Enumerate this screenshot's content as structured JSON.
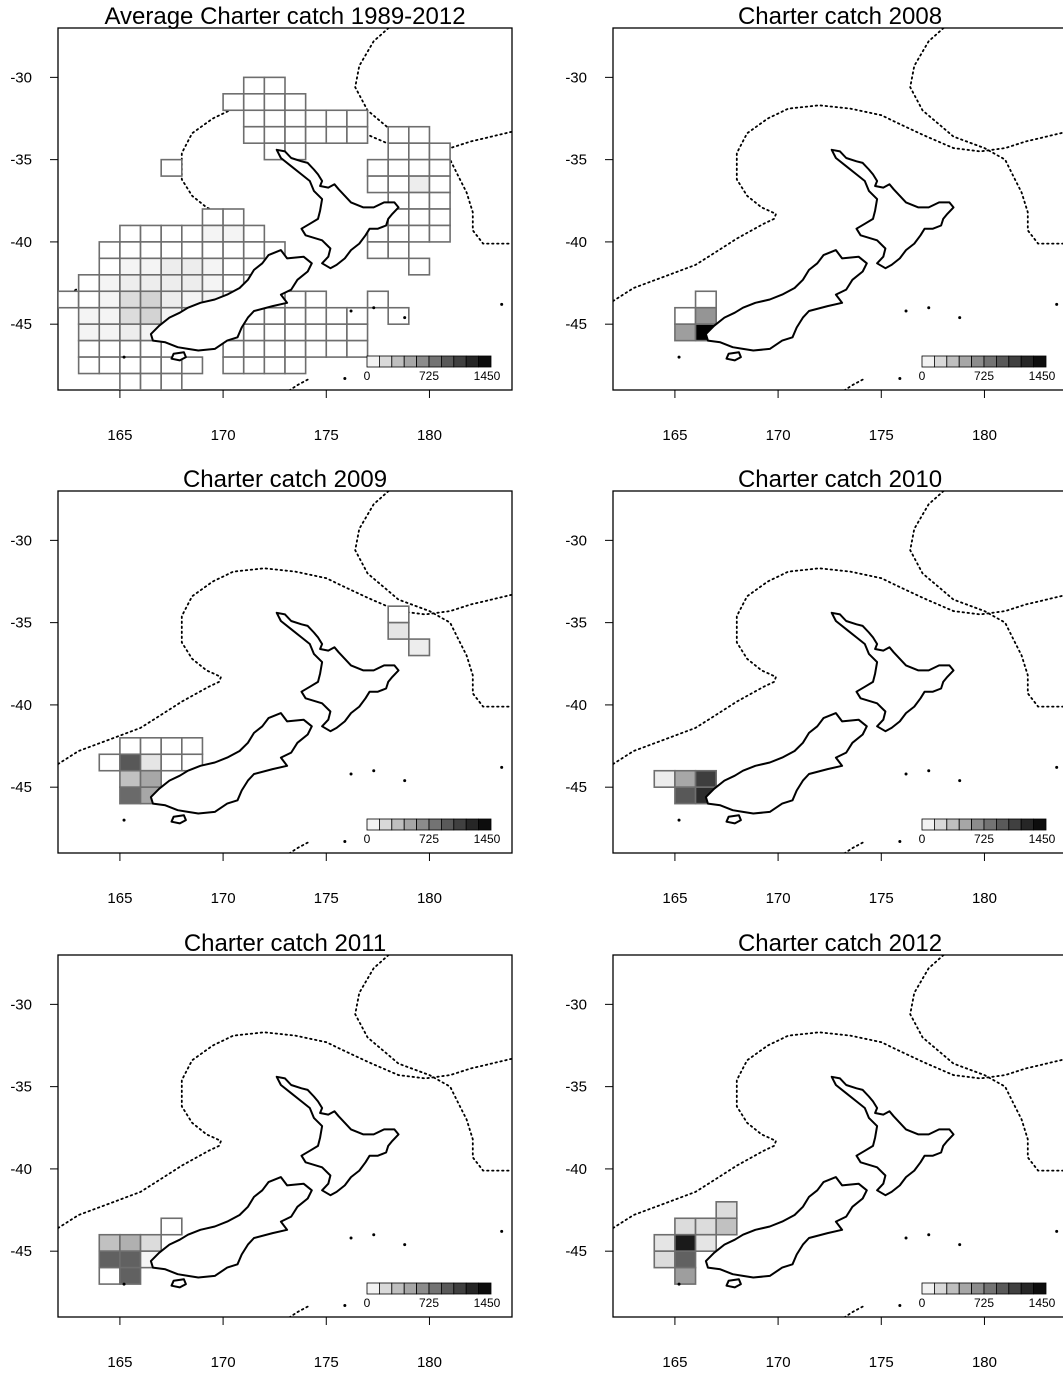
{
  "figure": {
    "x_ticks": [
      "165",
      "170",
      "175",
      "180"
    ],
    "y_ticks": [
      "-30",
      "-35",
      "-40",
      "-45"
    ],
    "legend": {
      "labels": [
        "0",
        "725",
        "1450"
      ],
      "min": 0,
      "max": 1450,
      "steps": 10
    }
  },
  "chart_data": [
    {
      "type": "heatmap",
      "title": "Average Charter catch 1989-2012",
      "xlim": [
        162,
        184
      ],
      "ylim": [
        -49,
        -27
      ],
      "cells": [
        [
          171,
          -30,
          0
        ],
        [
          172,
          -30,
          0
        ],
        [
          170,
          -31,
          0
        ],
        [
          171,
          -31,
          0
        ],
        [
          172,
          -31,
          0
        ],
        [
          173,
          -31,
          0
        ],
        [
          171,
          -32,
          0
        ],
        [
          172,
          -32,
          0
        ],
        [
          173,
          -32,
          0
        ],
        [
          174,
          -32,
          0
        ],
        [
          175,
          -32,
          0
        ],
        [
          176,
          -32,
          0
        ],
        [
          171,
          -33,
          0
        ],
        [
          172,
          -33,
          0
        ],
        [
          173,
          -33,
          0
        ],
        [
          174,
          -33,
          0
        ],
        [
          175,
          -33,
          0
        ],
        [
          176,
          -33,
          0
        ],
        [
          178,
          -33,
          0
        ],
        [
          179,
          -33,
          0
        ],
        [
          172,
          -34,
          0
        ],
        [
          173,
          -34,
          0
        ],
        [
          178,
          -34,
          0
        ],
        [
          179,
          -34,
          0
        ],
        [
          180,
          -34,
          0
        ],
        [
          167,
          -35,
          0
        ],
        [
          177,
          -35,
          0
        ],
        [
          178,
          -35,
          0
        ],
        [
          179,
          -35,
          0
        ],
        [
          180,
          -35,
          0
        ],
        [
          177,
          -36,
          0
        ],
        [
          178,
          -36,
          0
        ],
        [
          179,
          -36,
          100
        ],
        [
          180,
          -36,
          0
        ],
        [
          178,
          -37,
          0
        ],
        [
          179,
          -37,
          0
        ],
        [
          180,
          -37,
          0
        ],
        [
          169,
          -38,
          0
        ],
        [
          170,
          -38,
          0
        ],
        [
          178,
          -38,
          0
        ],
        [
          179,
          -38,
          0
        ],
        [
          180,
          -38,
          0
        ],
        [
          165,
          -39,
          0
        ],
        [
          166,
          -39,
          0
        ],
        [
          167,
          -39,
          0
        ],
        [
          168,
          -39,
          0
        ],
        [
          169,
          -39,
          60
        ],
        [
          170,
          -39,
          60
        ],
        [
          171,
          -39,
          0
        ],
        [
          177,
          -39,
          0
        ],
        [
          178,
          -39,
          0
        ],
        [
          179,
          -39,
          0
        ],
        [
          180,
          -39,
          0
        ],
        [
          164,
          -40,
          0
        ],
        [
          165,
          -40,
          0
        ],
        [
          166,
          -40,
          0
        ],
        [
          167,
          -40,
          0
        ],
        [
          168,
          -40,
          0
        ],
        [
          169,
          -40,
          0
        ],
        [
          170,
          -40,
          0
        ],
        [
          171,
          -40,
          0
        ],
        [
          172,
          -40,
          0
        ],
        [
          177,
          -40,
          0
        ],
        [
          178,
          -40,
          0
        ],
        [
          164,
          -41,
          0
        ],
        [
          165,
          -41,
          60
        ],
        [
          166,
          -41,
          60
        ],
        [
          167,
          -41,
          100
        ],
        [
          168,
          -41,
          100
        ],
        [
          169,
          -41,
          60
        ],
        [
          170,
          -41,
          0
        ],
        [
          171,
          -41,
          0
        ],
        [
          179,
          -41,
          0
        ],
        [
          163,
          -42,
          0
        ],
        [
          164,
          -42,
          60
        ],
        [
          165,
          -42,
          100
        ],
        [
          166,
          -42,
          100
        ],
        [
          167,
          -42,
          100
        ],
        [
          168,
          -42,
          100
        ],
        [
          169,
          -42,
          60
        ],
        [
          170,
          -42,
          0
        ],
        [
          162,
          -43,
          0
        ],
        [
          163,
          -43,
          0
        ],
        [
          164,
          -43,
          60
        ],
        [
          165,
          -43,
          200
        ],
        [
          166,
          -43,
          250
        ],
        [
          167,
          -43,
          100
        ],
        [
          168,
          -43,
          60
        ],
        [
          169,
          -43,
          60
        ],
        [
          173,
          -43,
          0
        ],
        [
          174,
          -43,
          0
        ],
        [
          177,
          -43,
          0
        ],
        [
          163,
          -44,
          60
        ],
        [
          164,
          -44,
          60
        ],
        [
          165,
          -44,
          200
        ],
        [
          166,
          -44,
          250
        ],
        [
          167,
          -44,
          60
        ],
        [
          171,
          -44,
          0
        ],
        [
          172,
          -44,
          0
        ],
        [
          173,
          -44,
          0
        ],
        [
          174,
          -44,
          0
        ],
        [
          175,
          -44,
          0
        ],
        [
          176,
          -44,
          0
        ],
        [
          178,
          -44,
          0
        ],
        [
          163,
          -45,
          60
        ],
        [
          164,
          -45,
          60
        ],
        [
          165,
          -45,
          100
        ],
        [
          166,
          -45,
          60
        ],
        [
          170,
          -45,
          0
        ],
        [
          171,
          -45,
          0
        ],
        [
          172,
          -45,
          0
        ],
        [
          173,
          -45,
          0
        ],
        [
          174,
          -45,
          0
        ],
        [
          175,
          -45,
          0
        ],
        [
          176,
          -45,
          0
        ],
        [
          163,
          -46,
          0
        ],
        [
          164,
          -46,
          0
        ],
        [
          165,
          -46,
          0
        ],
        [
          166,
          -46,
          0
        ],
        [
          170,
          -46,
          0
        ],
        [
          171,
          -46,
          0
        ],
        [
          172,
          -46,
          0
        ],
        [
          173,
          -46,
          0
        ],
        [
          174,
          -46,
          0
        ],
        [
          175,
          -46,
          0
        ],
        [
          176,
          -46,
          0
        ],
        [
          163,
          -47,
          0
        ],
        [
          164,
          -47,
          0
        ],
        [
          165,
          -47,
          0
        ],
        [
          166,
          -47,
          0
        ],
        [
          167,
          -47,
          0
        ],
        [
          168,
          -47,
          0
        ],
        [
          170,
          -47,
          0
        ],
        [
          171,
          -47,
          0
        ],
        [
          172,
          -47,
          0
        ],
        [
          173,
          -47,
          0
        ],
        [
          165,
          -48,
          0
        ],
        [
          166,
          -48,
          0
        ],
        [
          167,
          -48,
          0
        ]
      ]
    },
    {
      "type": "heatmap",
      "title": "Charter catch 2008",
      "xlim": [
        162,
        184
      ],
      "ylim": [
        -49,
        -27
      ],
      "cells": [
        [
          166,
          -43,
          0
        ],
        [
          165,
          -44,
          0
        ],
        [
          166,
          -44,
          600
        ],
        [
          165,
          -45,
          550
        ],
        [
          166,
          -45,
          1450
        ]
      ]
    },
    {
      "type": "heatmap",
      "title": "Charter catch 2009",
      "xlim": [
        162,
        184
      ],
      "ylim": [
        -49,
        -27
      ],
      "cells": [
        [
          178,
          -34,
          0
        ],
        [
          178,
          -35,
          150
        ],
        [
          179,
          -36,
          100
        ],
        [
          165,
          -42,
          0
        ],
        [
          166,
          -42,
          0
        ],
        [
          167,
          -42,
          0
        ],
        [
          168,
          -42,
          0
        ],
        [
          164,
          -43,
          0
        ],
        [
          165,
          -43,
          950
        ],
        [
          166,
          -43,
          150
        ],
        [
          167,
          -43,
          0
        ],
        [
          168,
          -43,
          0
        ],
        [
          165,
          -44,
          350
        ],
        [
          166,
          -44,
          500
        ],
        [
          165,
          -45,
          850
        ],
        [
          166,
          -45,
          500
        ]
      ]
    },
    {
      "type": "heatmap",
      "title": "Charter catch 2010",
      "xlim": [
        162,
        184
      ],
      "ylim": [
        -49,
        -27
      ],
      "cells": [
        [
          164,
          -44,
          100
        ],
        [
          165,
          -44,
          500
        ],
        [
          166,
          -44,
          1100
        ],
        [
          165,
          -45,
          950
        ],
        [
          166,
          -45,
          1200
        ]
      ]
    },
    {
      "type": "heatmap",
      "title": "Charter catch 2011",
      "xlim": [
        162,
        184
      ],
      "ylim": [
        -49,
        -27
      ],
      "cells": [
        [
          167,
          -43,
          0
        ],
        [
          164,
          -44,
          350
        ],
        [
          165,
          -44,
          450
        ],
        [
          166,
          -44,
          200
        ],
        [
          164,
          -45,
          900
        ],
        [
          165,
          -45,
          900
        ],
        [
          166,
          -45,
          50
        ],
        [
          164,
          -46,
          0
        ],
        [
          165,
          -46,
          900
        ]
      ]
    },
    {
      "type": "heatmap",
      "title": "Charter catch 2012",
      "xlim": [
        162,
        184
      ],
      "ylim": [
        -49,
        -27
      ],
      "cells": [
        [
          167,
          -42,
          200
        ],
        [
          165,
          -43,
          200
        ],
        [
          166,
          -43,
          200
        ],
        [
          167,
          -43,
          350
        ],
        [
          164,
          -44,
          150
        ],
        [
          165,
          -44,
          1300
        ],
        [
          166,
          -44,
          150
        ],
        [
          164,
          -45,
          200
        ],
        [
          165,
          -45,
          900
        ],
        [
          165,
          -46,
          550
        ]
      ]
    }
  ]
}
